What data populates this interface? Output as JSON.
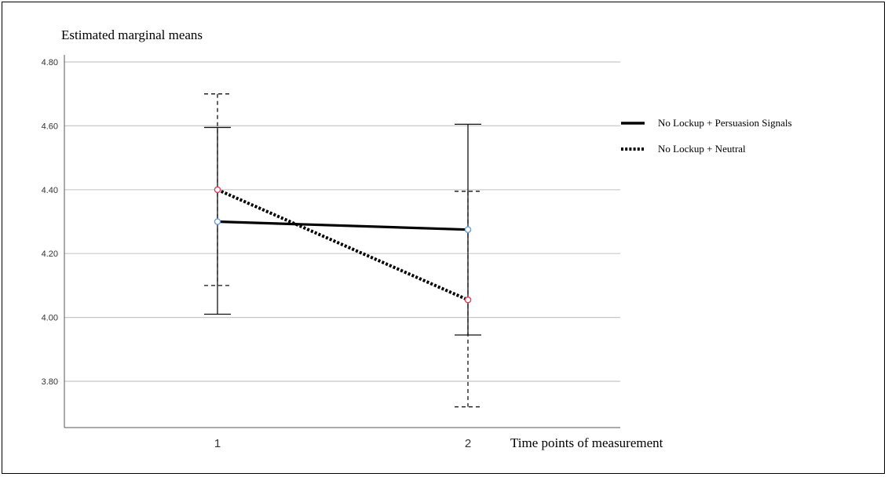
{
  "chart_data": {
    "type": "line",
    "ylabel": "Estimated marginal means",
    "xlabel": "Time points of measurement",
    "categories": [
      "1",
      "2"
    ],
    "ylim": [
      3.68,
      4.84
    ],
    "yticks": [
      "3.80",
      "4.00",
      "4.20",
      "4.40",
      "4.60",
      "4.80"
    ],
    "grid": "horizontal",
    "legend_position": "right",
    "series": [
      {
        "name": "No Lockup + Persuasion Signals",
        "line_style": "solid",
        "marker_color": "#6a9fd8",
        "values": [
          4.3,
          4.275
        ],
        "error_low": [
          4.01,
          3.945
        ],
        "error_high": [
          4.595,
          4.605
        ]
      },
      {
        "name": "No Lockup + Neutral",
        "line_style": "dotted",
        "marker_color": "#e0405a",
        "values": [
          4.4,
          4.055
        ],
        "error_low": [
          4.1,
          3.72
        ],
        "error_high": [
          4.7,
          4.395
        ]
      }
    ]
  }
}
